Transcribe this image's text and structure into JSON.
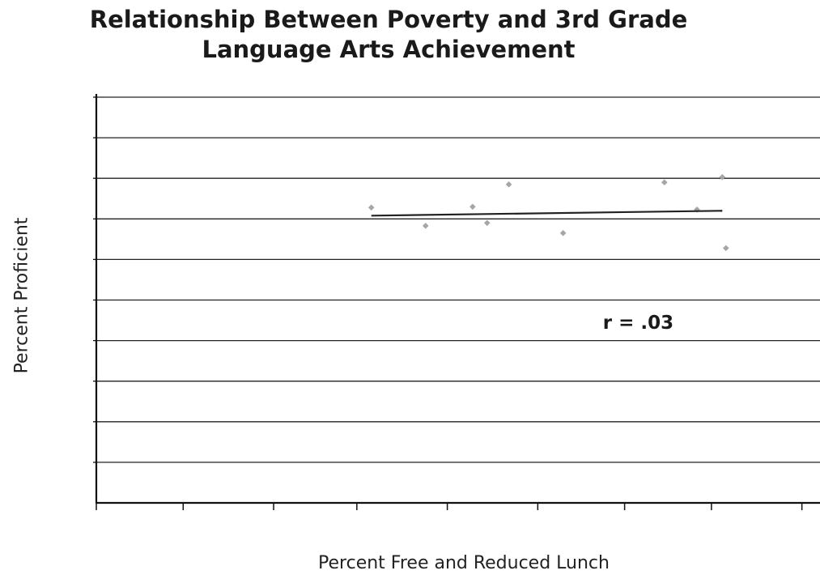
{
  "chart_data": {
    "type": "scatter",
    "title": [
      "Relationship Between Poverty and 3rd Grade",
      "Language Arts Achievement"
    ],
    "xlabel": "Percent Free and Reduced Lunch",
    "ylabel": "Percent Proficient",
    "xlim": [
      0,
      100
    ],
    "ylim": [
      0,
      100
    ],
    "x_ticks": [
      0,
      12,
      24.5,
      36,
      48.5,
      61,
      73,
      85,
      97.5
    ],
    "y_ticks": [
      10,
      20,
      30,
      40,
      50,
      60,
      70,
      80,
      90,
      100
    ],
    "tick_labels_shown": false,
    "grid": "horizontal",
    "points": [
      {
        "x": 38.0,
        "y": 72.8
      },
      {
        "x": 45.5,
        "y": 68.3
      },
      {
        "x": 52.0,
        "y": 73.0
      },
      {
        "x": 54.0,
        "y": 69.0
      },
      {
        "x": 57.0,
        "y": 78.5
      },
      {
        "x": 64.5,
        "y": 66.5
      },
      {
        "x": 78.5,
        "y": 79.0
      },
      {
        "x": 83.0,
        "y": 72.3
      },
      {
        "x": 86.5,
        "y": 80.3
      },
      {
        "x": 87.0,
        "y": 62.8
      }
    ],
    "trendline": {
      "x": [
        38.0,
        86.5
      ],
      "y": [
        70.8,
        72.0
      ]
    },
    "annotation": "r = .03",
    "annotation_pos": {
      "x": 70,
      "y": 44.5
    },
    "colors": {
      "points": "#a6a6a6",
      "trendline": "#222222",
      "grid": "#222222",
      "axes": "#111111"
    }
  }
}
